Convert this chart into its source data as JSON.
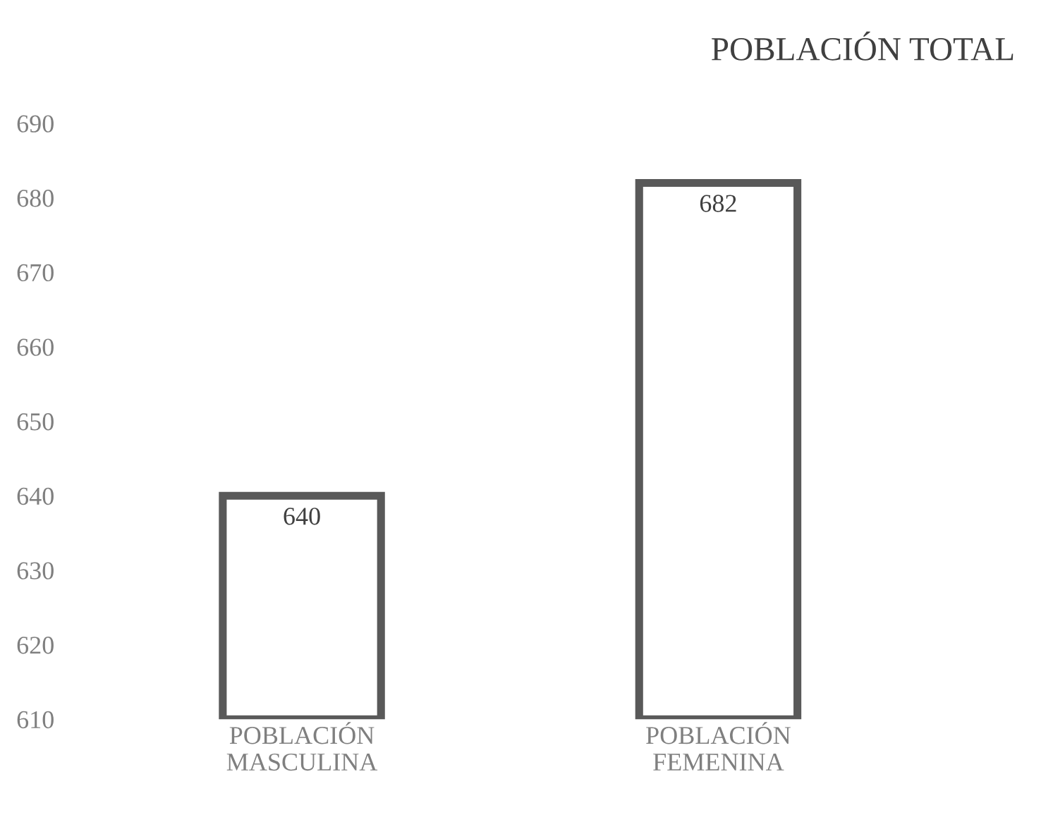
{
  "chart_data": {
    "type": "bar",
    "title": "POBLACIÓN TOTAL",
    "categories": [
      "POBLACIÓN\nMASCULINA",
      "POBLACIÓN\nFEMENINA"
    ],
    "values": [
      640,
      682
    ],
    "color": "#595959",
    "ylim": [
      610,
      690
    ],
    "yticks": [
      610,
      620,
      630,
      640,
      650,
      660,
      670,
      680,
      690
    ],
    "grid": false,
    "data_labels": true
  }
}
